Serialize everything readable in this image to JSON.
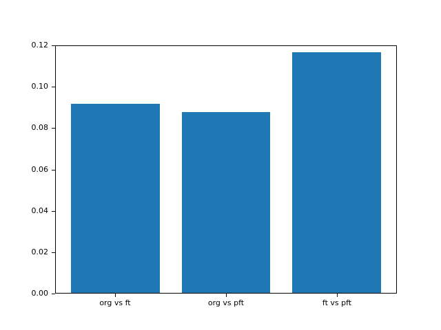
{
  "figure": {
    "background": "#ffffff",
    "bar_color": "#1f77b4",
    "axis_color": "#000000"
  },
  "chart_data": {
    "type": "bar",
    "categories": [
      "org vs ft",
      "org vs pft",
      "ft vs pft"
    ],
    "values": [
      0.092,
      0.088,
      0.117
    ],
    "title": "",
    "xlabel": "",
    "ylabel": "",
    "ylim": [
      0,
      0.12
    ],
    "yticks": [
      0.0,
      0.02,
      0.04,
      0.06,
      0.08,
      0.1,
      0.12
    ],
    "ytick_format_decimals": 2,
    "grid": false,
    "legend": null
  }
}
